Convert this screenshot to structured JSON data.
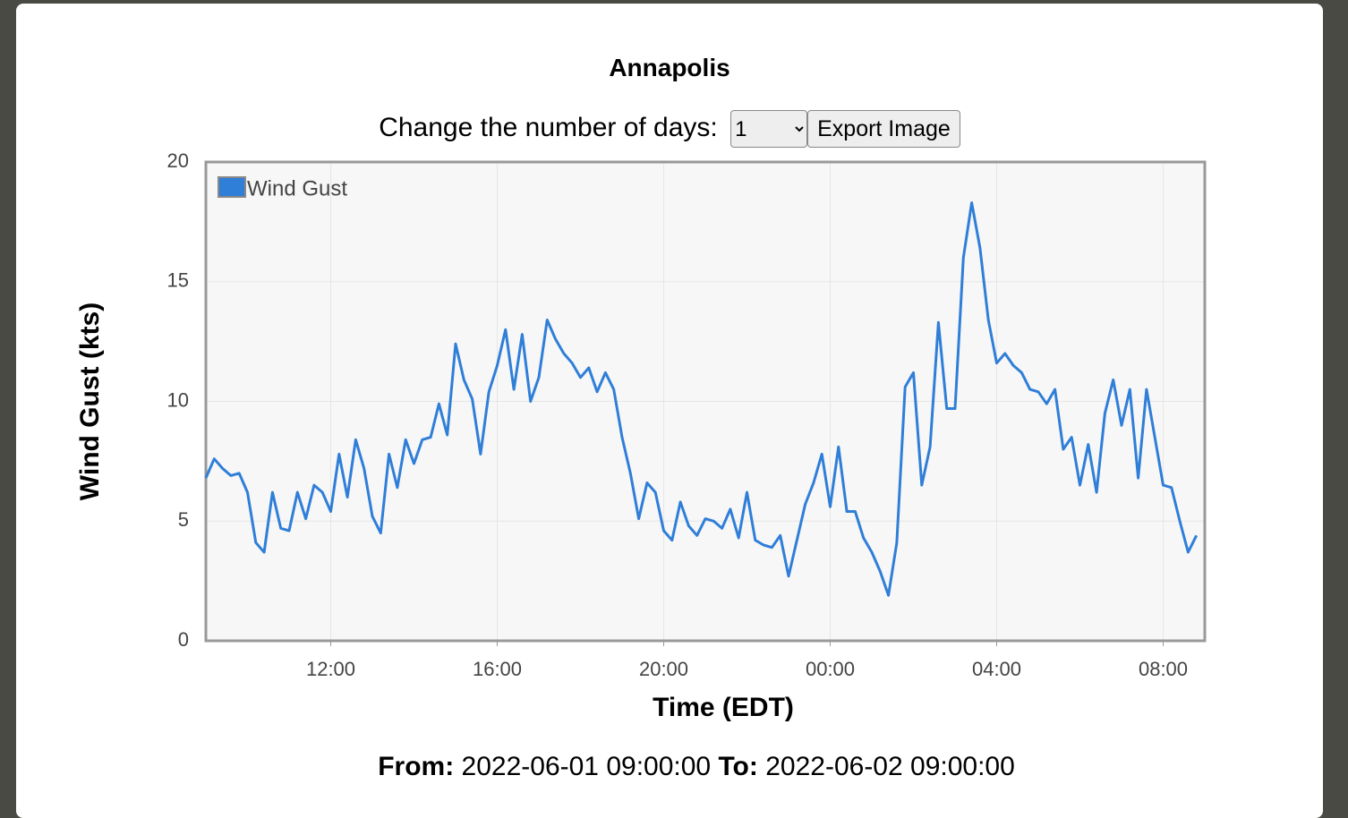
{
  "modal": {
    "title": "Annapolis",
    "controls": {
      "label": "Change the number of days:",
      "days_options": [
        "1"
      ],
      "button": "Export Image"
    },
    "footer": {
      "from_label": "From:",
      "from": "2022-06-01 09:00:00",
      "to_label": "To:",
      "to": "2022-06-02 09:00:00"
    }
  },
  "chart_data": {
    "type": "line",
    "y_label": "Wind Gust (kts)",
    "x_label": "Time (EDT)",
    "x": [
      0,
      0.2,
      0.4,
      0.6,
      0.8,
      1,
      1.2,
      1.4,
      1.6,
      1.8,
      2,
      2.2,
      2.4,
      2.6,
      2.8,
      3,
      3.2,
      3.4,
      3.6,
      3.8,
      4,
      4.2,
      4.4,
      4.6,
      4.8,
      5,
      5.2,
      5.4,
      5.6,
      5.8,
      6,
      6.2,
      6.4,
      6.6,
      6.8,
      7,
      7.2,
      7.4,
      7.6,
      7.8,
      8,
      8.2,
      8.4,
      8.6,
      8.8,
      9,
      9.2,
      9.4,
      9.6,
      9.8,
      10,
      10.2,
      10.4,
      10.6,
      10.8,
      11,
      11.2,
      11.4,
      11.6,
      11.8,
      12,
      12.2,
      12.4,
      12.6,
      12.8,
      13,
      13.2,
      13.4,
      13.6,
      13.8,
      14,
      14.2,
      14.4,
      14.6,
      14.8,
      15,
      15.2,
      15.4,
      15.6,
      15.8,
      16,
      16.2,
      16.4,
      16.6,
      16.8,
      17,
      17.2,
      17.4,
      17.6,
      17.8,
      18,
      18.2,
      18.4,
      18.6,
      18.8,
      19,
      19.2,
      19.4,
      19.6,
      19.8,
      20,
      20.2,
      20.4,
      20.6,
      20.8,
      21,
      21.2,
      21.4,
      21.6,
      21.8,
      22,
      22.2,
      22.4,
      22.6,
      22.8,
      23,
      23.2,
      23.4,
      23.6,
      23.8
    ],
    "series": [
      {
        "name": "Wind Gust",
        "color": "#2f7ed8",
        "values": [
          6.8,
          7.6,
          7.2,
          6.9,
          7.0,
          6.2,
          4.1,
          3.7,
          6.2,
          4.7,
          4.6,
          6.2,
          5.1,
          6.5,
          6.2,
          5.4,
          7.8,
          6.0,
          8.4,
          7.2,
          5.2,
          4.5,
          7.8,
          6.4,
          8.4,
          7.4,
          8.4,
          8.5,
          9.9,
          8.6,
          12.4,
          10.9,
          10.1,
          7.8,
          10.4,
          11.5,
          13.0,
          10.5,
          12.8,
          10.0,
          11.0,
          13.4,
          12.6,
          12.0,
          11.6,
          11.0,
          11.4,
          10.4,
          11.2,
          10.5,
          8.5,
          7.0,
          5.1,
          6.6,
          6.2,
          4.6,
          4.2,
          5.8,
          4.8,
          4.4,
          5.1,
          5.0,
          4.7,
          5.5,
          4.3,
          6.2,
          4.2,
          4.0,
          3.9,
          4.4,
          2.7,
          4.2,
          5.7,
          6.6,
          7.8,
          5.6,
          8.1,
          5.4,
          5.4,
          4.3,
          3.7,
          2.9,
          1.9,
          4.1,
          10.6,
          11.2,
          6.5,
          8.1,
          13.3,
          9.7,
          9.7,
          16.0,
          18.3,
          16.4,
          13.4,
          11.6,
          12.0,
          11.5,
          11.2,
          10.5,
          10.4,
          9.9,
          10.5,
          8.0,
          8.5,
          6.5,
          8.2,
          6.2,
          9.5,
          10.9,
          9.0,
          10.5,
          6.8,
          10.5,
          8.5,
          6.5,
          6.4,
          5.0,
          3.7,
          4.4
        ]
      }
    ],
    "xlim": [
      0,
      24
    ],
    "xticks": [
      {
        "value": 3,
        "label": "12:00"
      },
      {
        "value": 7,
        "label": "16:00"
      },
      {
        "value": 11,
        "label": "20:00"
      },
      {
        "value": 15,
        "label": "00:00"
      },
      {
        "value": 19,
        "label": "04:00"
      },
      {
        "value": 23,
        "label": "08:00"
      }
    ],
    "ylim": [
      0,
      20
    ],
    "yticks": [
      0,
      5,
      10,
      15,
      20
    ],
    "grid": true,
    "legend": "upper left"
  }
}
